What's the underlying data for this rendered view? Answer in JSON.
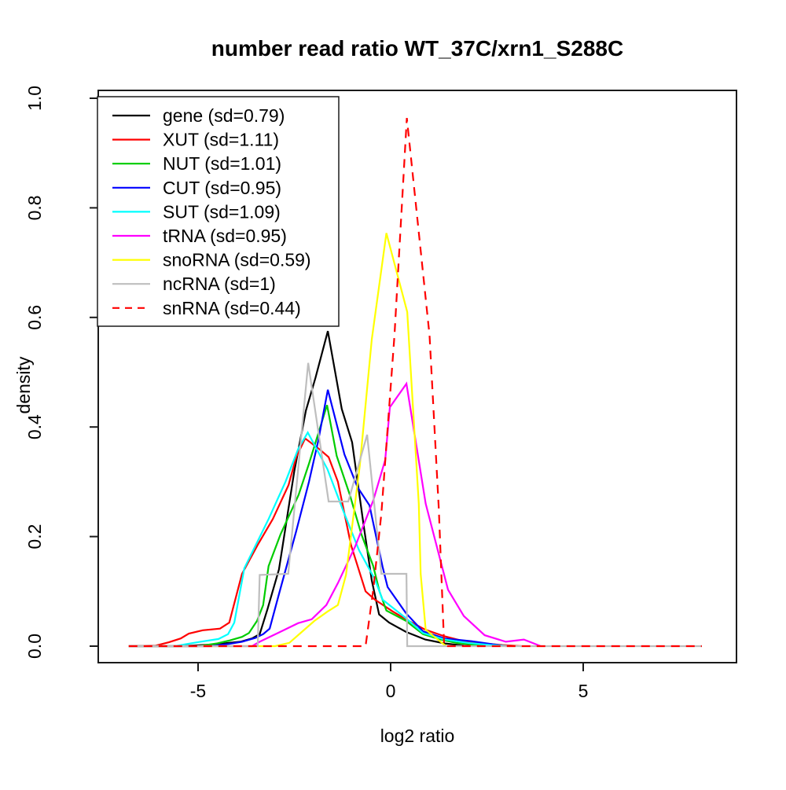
{
  "title": "number read ratio WT_37C/xrn1_S288C",
  "x_axis": {
    "label": "log2 ratio",
    "tick_labels": [
      "-5",
      "0",
      "5"
    ]
  },
  "y_axis": {
    "label": "density",
    "tick_labels": [
      "0.0",
      "0.2",
      "0.4",
      "0.6",
      "0.8",
      "1.0"
    ]
  },
  "chart_data": {
    "type": "line",
    "title": "number read ratio WT_37C/xrn1_S288C",
    "xlabel": "log2 ratio",
    "ylabel": "density",
    "xlim": [
      -7.6,
      9.0
    ],
    "ylim": [
      0,
      1.0
    ],
    "x_ticks": [
      -5,
      0,
      5
    ],
    "y_ticks": [
      0,
      0.2,
      0.4,
      0.6,
      0.8,
      1.0
    ],
    "grid": false,
    "legend_position": "top-left",
    "series": [
      {
        "name": "gene",
        "label": "gene (sd=0.79)",
        "sd": 0.79,
        "color": "#000000",
        "dashed": false,
        "points": [
          [
            -6.8,
            0
          ],
          [
            -5.5,
            0
          ],
          [
            -4.6,
            0.003
          ],
          [
            -3.9,
            0.008
          ],
          [
            -3.6,
            0.014
          ],
          [
            -3.4,
            0.022
          ],
          [
            -3.2,
            0.067
          ],
          [
            -2.9,
            0.14
          ],
          [
            -2.5,
            0.32
          ],
          [
            -2.2,
            0.43
          ],
          [
            -1.95,
            0.49
          ],
          [
            -1.63,
            0.575
          ],
          [
            -1.27,
            0.433
          ],
          [
            -1.0,
            0.372
          ],
          [
            -0.7,
            0.22
          ],
          [
            -0.49,
            0.12
          ],
          [
            -0.3,
            0.058
          ],
          [
            -0.04,
            0.043
          ],
          [
            0.4,
            0.026
          ],
          [
            0.9,
            0.012
          ],
          [
            1.4,
            0.005
          ],
          [
            1.9,
            0.001
          ],
          [
            2.3,
            0
          ]
        ]
      },
      {
        "name": "XUT",
        "label": "XUT (sd=1.11)",
        "sd": 1.11,
        "color": "#ff0000",
        "dashed": false,
        "points": [
          [
            -6.8,
            0
          ],
          [
            -6.1,
            0.001
          ],
          [
            -5.76,
            0.007
          ],
          [
            -5.45,
            0.014
          ],
          [
            -5.24,
            0.023
          ],
          [
            -4.88,
            0.029
          ],
          [
            -4.43,
            0.032
          ],
          [
            -4.19,
            0.043
          ],
          [
            -3.86,
            0.132
          ],
          [
            -3.45,
            0.185
          ],
          [
            -3.06,
            0.232
          ],
          [
            -2.65,
            0.294
          ],
          [
            -2.45,
            0.345
          ],
          [
            -2.22,
            0.379
          ],
          [
            -1.84,
            0.359
          ],
          [
            -1.61,
            0.345
          ],
          [
            -1.37,
            0.3
          ],
          [
            -1.03,
            0.185
          ],
          [
            -0.65,
            0.1
          ],
          [
            -0.41,
            0.085
          ],
          [
            0.06,
            0.063
          ],
          [
            0.47,
            0.046
          ],
          [
            0.9,
            0.03
          ],
          [
            1.4,
            0.018
          ],
          [
            1.9,
            0.009
          ],
          [
            2.4,
            0.005
          ],
          [
            2.9,
            0.002
          ],
          [
            3.4,
            0
          ]
        ]
      },
      {
        "name": "NUT",
        "label": "NUT (sd=1.01)",
        "sd": 1.01,
        "color": "#00cc00",
        "dashed": false,
        "points": [
          [
            -6.8,
            0
          ],
          [
            -5.0,
            0
          ],
          [
            -4.5,
            0.005
          ],
          [
            -4.2,
            0.01
          ],
          [
            -3.86,
            0.017
          ],
          [
            -3.68,
            0.024
          ],
          [
            -3.47,
            0.046
          ],
          [
            -3.31,
            0.075
          ],
          [
            -3.17,
            0.146
          ],
          [
            -2.86,
            0.204
          ],
          [
            -2.39,
            0.276
          ],
          [
            -2.12,
            0.333
          ],
          [
            -1.65,
            0.44
          ],
          [
            -1.4,
            0.347
          ],
          [
            -1.06,
            0.276
          ],
          [
            -0.76,
            0.204
          ],
          [
            -0.45,
            0.146
          ],
          [
            -0.29,
            0.1
          ],
          [
            -0.11,
            0.065
          ],
          [
            0.4,
            0.046
          ],
          [
            0.84,
            0.022
          ],
          [
            1.3,
            0.012
          ],
          [
            1.7,
            0.006
          ],
          [
            2.1,
            0.003
          ],
          [
            2.5,
            0
          ]
        ]
      },
      {
        "name": "CUT",
        "label": "CUT (sd=0.95)",
        "sd": 0.95,
        "color": "#0000ff",
        "dashed": false,
        "points": [
          [
            -6.8,
            0
          ],
          [
            -4.7,
            0
          ],
          [
            -4.2,
            0.004
          ],
          [
            -3.86,
            0.008
          ],
          [
            -3.51,
            0.015
          ],
          [
            -3.31,
            0.022
          ],
          [
            -3.14,
            0.032
          ],
          [
            -2.9,
            0.095
          ],
          [
            -2.45,
            0.21
          ],
          [
            -2.12,
            0.3
          ],
          [
            -1.88,
            0.375
          ],
          [
            -1.63,
            0.468
          ],
          [
            -1.2,
            0.35
          ],
          [
            -0.86,
            0.29
          ],
          [
            -0.55,
            0.257
          ],
          [
            -0.21,
            0.145
          ],
          [
            -0.08,
            0.108
          ],
          [
            0.4,
            0.06
          ],
          [
            0.84,
            0.027
          ],
          [
            1.4,
            0.014
          ],
          [
            2.1,
            0.009
          ],
          [
            2.6,
            0.004
          ],
          [
            3.0,
            0
          ]
        ]
      },
      {
        "name": "SUT",
        "label": "SUT (sd=1.09)",
        "sd": 1.09,
        "color": "#00ffff",
        "dashed": false,
        "points": [
          [
            -6.8,
            0
          ],
          [
            -5.6,
            0
          ],
          [
            -5.28,
            0.004
          ],
          [
            -4.94,
            0.008
          ],
          [
            -4.47,
            0.013
          ],
          [
            -4.22,
            0.022
          ],
          [
            -4.06,
            0.043
          ],
          [
            -3.8,
            0.142
          ],
          [
            -3.17,
            0.232
          ],
          [
            -2.73,
            0.3
          ],
          [
            -2.4,
            0.36
          ],
          [
            -2.15,
            0.39
          ],
          [
            -1.64,
            0.323
          ],
          [
            -1.23,
            0.247
          ],
          [
            -0.82,
            0.175
          ],
          [
            -0.41,
            0.122
          ],
          [
            -0.21,
            0.085
          ],
          [
            0.4,
            0.051
          ],
          [
            0.84,
            0.024
          ],
          [
            1.4,
            0.012
          ],
          [
            2.0,
            0.006
          ],
          [
            2.6,
            0.002
          ],
          [
            3.1,
            0
          ]
        ]
      },
      {
        "name": "tRNA",
        "label": "tRNA (sd=0.95)",
        "sd": 0.95,
        "color": "#ff00ff",
        "dashed": false,
        "points": [
          [
            -6.8,
            0
          ],
          [
            -3.6,
            0
          ],
          [
            -3.4,
            0.008
          ],
          [
            -2.9,
            0.025
          ],
          [
            -2.4,
            0.042
          ],
          [
            -2.05,
            0.049
          ],
          [
            -1.67,
            0.075
          ],
          [
            -1.37,
            0.115
          ],
          [
            -0.92,
            0.182
          ],
          [
            -0.45,
            0.266
          ],
          [
            -0.14,
            0.34
          ],
          [
            -0.02,
            0.436
          ],
          [
            0.41,
            0.479
          ],
          [
            0.91,
            0.26
          ],
          [
            1.49,
            0.103
          ],
          [
            1.9,
            0.055
          ],
          [
            2.44,
            0.02
          ],
          [
            2.99,
            0.008
          ],
          [
            3.46,
            0.012
          ],
          [
            3.9,
            0
          ]
        ]
      },
      {
        "name": "snoRNA",
        "label": "snoRNA (sd=0.59)",
        "sd": 0.59,
        "color": "#ffff00",
        "dashed": false,
        "points": [
          [
            -6.8,
            0
          ],
          [
            -3.0,
            0
          ],
          [
            -2.63,
            0.006
          ],
          [
            -1.98,
            0.046
          ],
          [
            -1.64,
            0.063
          ],
          [
            -1.37,
            0.075
          ],
          [
            -1.16,
            0.13
          ],
          [
            -0.8,
            0.33
          ],
          [
            -0.49,
            0.56
          ],
          [
            -0.11,
            0.754
          ],
          [
            0.43,
            0.61
          ],
          [
            0.73,
            0.26
          ],
          [
            0.78,
            0.132
          ],
          [
            0.91,
            0.03
          ],
          [
            1.35,
            0.005
          ],
          [
            1.45,
            0
          ]
        ]
      },
      {
        "name": "ncRNA",
        "label": "ncRNA (sd=1)",
        "sd": 1,
        "color": "#bebebe",
        "dashed": false,
        "points": [
          [
            -6.8,
            0
          ],
          [
            -3.45,
            0
          ],
          [
            -3.4,
            0.13
          ],
          [
            -2.66,
            0.132
          ],
          [
            -2.14,
            0.517
          ],
          [
            -1.61,
            0.264
          ],
          [
            -1.1,
            0.264
          ],
          [
            -0.61,
            0.386
          ],
          [
            -0.24,
            0.132
          ],
          [
            0.41,
            0.132
          ],
          [
            0.43,
            0
          ],
          [
            8.08,
            0
          ]
        ]
      },
      {
        "name": "snRNA",
        "label": "snRNA (sd=0.44)",
        "sd": 0.44,
        "color": "#ff0000",
        "dashed": true,
        "points": [
          [
            -6.8,
            0
          ],
          [
            -0.65,
            0
          ],
          [
            -0.45,
            0.103
          ],
          [
            -0.24,
            0.242
          ],
          [
            0.1,
            0.568
          ],
          [
            0.42,
            0.964
          ],
          [
            1.01,
            0.567
          ],
          [
            1.25,
            0.25
          ],
          [
            1.39,
            0
          ],
          [
            8.08,
            0
          ]
        ]
      }
    ]
  }
}
